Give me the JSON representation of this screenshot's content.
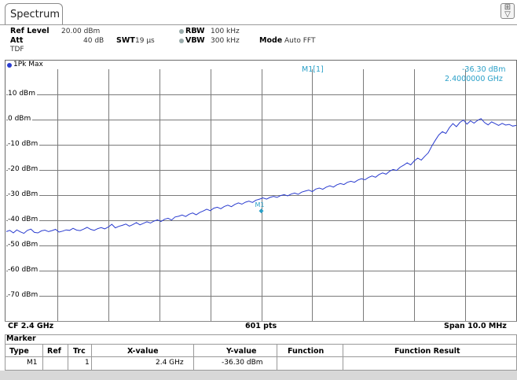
{
  "tab": {
    "label": "Spectrum"
  },
  "settings": {
    "ref_level_label": "Ref Level",
    "ref_level_value": "20.00 dBm",
    "att_label": "Att",
    "att_value": "40 dB",
    "swt_label": "SWT",
    "swt_value": "19 µs",
    "rbw_label": "RBW",
    "rbw_value": "100 kHz",
    "vbw_label": "VBW",
    "vbw_value": "300 kHz",
    "mode_label": "Mode",
    "mode_value": "Auto FFT",
    "tdf": "TDF"
  },
  "trace": {
    "label": "1Pk Max",
    "color": "#2a3ccf"
  },
  "marker_readout": {
    "name": "M1[1]",
    "level": "-36.30 dBm",
    "freq": "2.4000000 GHz",
    "color": "#2aa0c8",
    "marker_tag": "M1"
  },
  "bottom_bar": {
    "cf": "CF 2.4 GHz",
    "pts": "601 pts",
    "span": "Span 10.0 MHz"
  },
  "marker_table": {
    "title": "Marker",
    "headers": [
      "Type",
      "Ref",
      "Trc",
      "X-value",
      "Y-value",
      "Function",
      "Function Result"
    ],
    "rows": [
      [
        "M1",
        "",
        "1",
        "2.4 GHz",
        "-36.30 dBm",
        "",
        ""
      ]
    ]
  },
  "chart_data": {
    "type": "line",
    "ylim": [
      -80,
      20
    ],
    "y_tick_labels": [
      "10 dBm",
      "0 dBm",
      "-10 dBm",
      "-20 dBm",
      "-30 dBm",
      "-40 dBm",
      "-50 dBm",
      "-60 dBm",
      "-70 dBm"
    ],
    "y_tick_values": [
      10,
      0,
      -10,
      -20,
      -30,
      -40,
      -50,
      -60,
      -70
    ],
    "x_divisions": 10,
    "grid": true,
    "series": [
      {
        "values_dbm": [
          -44.5,
          -44,
          -45,
          -43.8,
          -44.6,
          -45.2,
          -44,
          -43.5,
          -44.8,
          -45,
          -44.2,
          -43.9,
          -44.5,
          -44.1,
          -43.6,
          -44.7,
          -44.3,
          -43.8,
          -44,
          -43.2,
          -43.9,
          -44.1,
          -43.5,
          -42.8,
          -43.6,
          -44,
          -43.3,
          -42.9,
          -43.4,
          -42.7,
          -41.6,
          -43,
          -42.4,
          -42,
          -41.5,
          -42.3,
          -41.7,
          -40.9,
          -41.8,
          -41.2,
          -40.6,
          -41.1,
          -40.3,
          -39.8,
          -40.5,
          -39.6,
          -39.2,
          -39.9,
          -38.7,
          -38.4,
          -37.9,
          -38.5,
          -37.6,
          -37.1,
          -37.8,
          -36.9,
          -36.3,
          -35.6,
          -36.2,
          -35.2,
          -34.8,
          -35.4,
          -34.5,
          -34,
          -34.6,
          -33.7,
          -33.1,
          -33.6,
          -32.8,
          -32.4,
          -32.9,
          -32,
          -31.6,
          -31.1,
          -31.6,
          -30.9,
          -30.5,
          -30.9,
          -30.2,
          -29.8,
          -30.3,
          -29.6,
          -29.2,
          -29.7,
          -28.8,
          -28.4,
          -28,
          -28.6,
          -27.6,
          -27.2,
          -27.7,
          -26.8,
          -26.3,
          -26.8,
          -25.9,
          -25.4,
          -25.8,
          -24.9,
          -24.5,
          -24.9,
          -24,
          -23.5,
          -23.9,
          -23,
          -22.4,
          -22.9,
          -21.8,
          -21.2,
          -21.7,
          -20.5,
          -19.8,
          -20.2,
          -18.9,
          -18.1,
          -17.2,
          -18,
          -16.4,
          -15.3,
          -16.1,
          -14.6,
          -13.2,
          -10.5,
          -8.2,
          -6.1,
          -4.8,
          -5.5,
          -3.2,
          -1.6,
          -2.8,
          -1.1,
          -0.2,
          -1.8,
          -0.5,
          -1.4,
          -0.3,
          0.4,
          -1.2,
          -2.1,
          -0.9,
          -1.6,
          -2.3,
          -1.5,
          -2.2,
          -1.9,
          -2.6,
          -2.3
        ]
      }
    ]
  }
}
